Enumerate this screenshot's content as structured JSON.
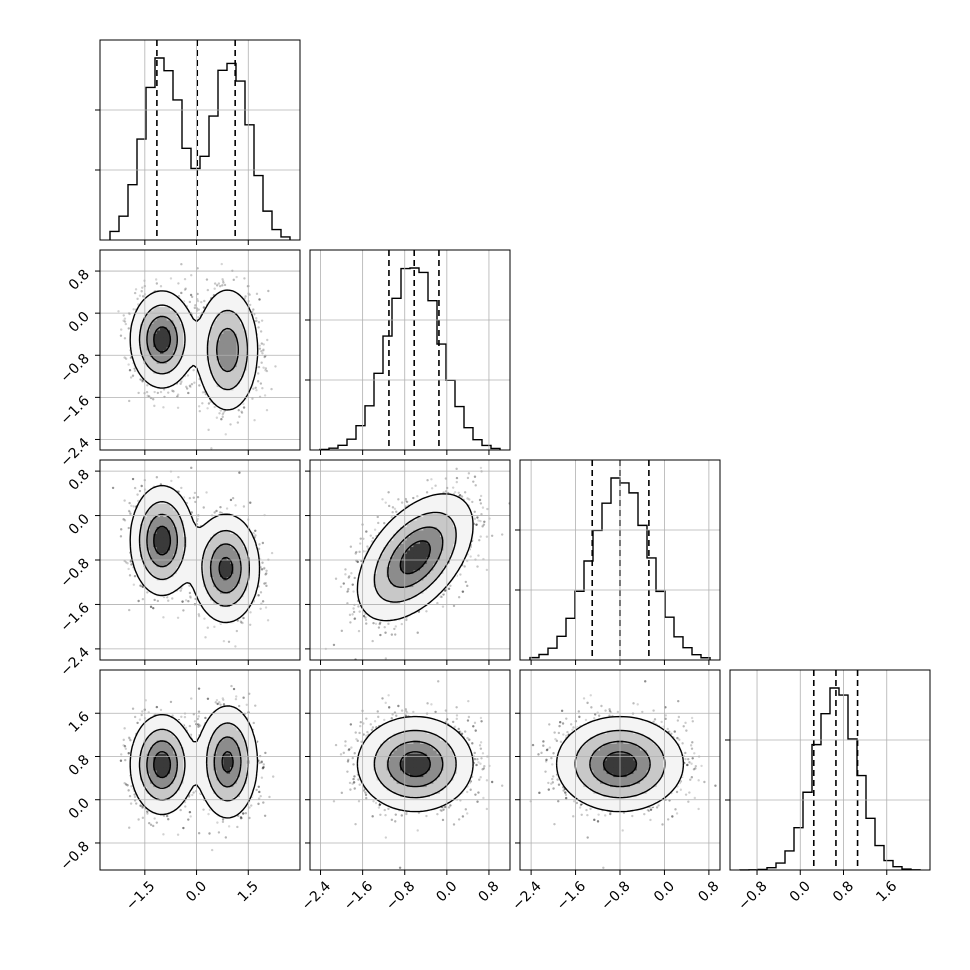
{
  "chart_data": {
    "type": "corner",
    "colors": {
      "line": "#000000",
      "grid": "#b0b0b0",
      "scatter": "#000000"
    },
    "params": [
      {
        "range": [
          -2.8,
          3.0
        ],
        "ticks": [
          -1.5,
          0.0,
          1.5
        ],
        "tick_labels": [
          "−1.5",
          "0.0",
          "1.5"
        ],
        "mixture": [
          {
            "w": 0.5,
            "mu": -1.0,
            "sd": 0.55
          },
          {
            "w": 0.5,
            "mu": 1.0,
            "sd": 0.55
          }
        ],
        "quantiles": [
          -1.15,
          0.02,
          1.12
        ]
      },
      {
        "range": [
          -2.6,
          1.2
        ],
        "ticks": [
          -2.4,
          -1.6,
          -0.8,
          0.0,
          0.8
        ],
        "tick_labels": [
          "−2.4",
          "−1.6",
          "−0.8",
          "0.0",
          "0.8"
        ],
        "mixture": [
          {
            "w": 1.0,
            "mu": -0.62,
            "sd": 0.5
          }
        ],
        "quantiles": [
          -1.1,
          -0.62,
          -0.15
        ]
      },
      {
        "range": [
          -2.6,
          1.0
        ],
        "ticks": [
          -2.4,
          -1.6,
          -0.8,
          0.0,
          0.8
        ],
        "tick_labels": [
          "−2.4",
          "−1.6",
          "−0.8",
          "0.0",
          "0.8"
        ],
        "mixture": [
          {
            "w": 1.0,
            "mu": -0.8,
            "sd": 0.52
          }
        ],
        "quantiles": [
          -1.3,
          -0.8,
          -0.28
        ]
      },
      {
        "range": [
          -1.3,
          2.4
        ],
        "ticks": [
          -0.8,
          0.0,
          0.8,
          1.6
        ],
        "tick_labels": [
          "−0.8",
          "0.0",
          "0.8",
          "1.6"
        ],
        "mixture": [
          {
            "w": 1.0,
            "mu": 0.66,
            "sd": 0.4
          }
        ],
        "quantiles": [
          0.25,
          0.66,
          1.06
        ]
      }
    ],
    "pairs": [
      {
        "row": 1,
        "col": 0,
        "blobs": [
          {
            "w": 0.5,
            "mx": -1.0,
            "my": -0.5,
            "sx": 0.42,
            "sy": 0.42,
            "rho": 0.0
          },
          {
            "w": 0.5,
            "mx": 0.9,
            "my": -0.7,
            "sx": 0.42,
            "sy": 0.55,
            "rho": 0.0
          }
        ]
      },
      {
        "row": 2,
        "col": 0,
        "blobs": [
          {
            "w": 0.5,
            "mx": -1.0,
            "my": -0.45,
            "sx": 0.42,
            "sy": 0.45,
            "rho": 0.0
          },
          {
            "w": 0.5,
            "mx": 0.85,
            "my": -0.95,
            "sx": 0.45,
            "sy": 0.45,
            "rho": 0.0
          }
        ]
      },
      {
        "row": 2,
        "col": 1,
        "blobs": [
          {
            "w": 1.0,
            "mx": -0.6,
            "my": -0.75,
            "sx": 0.5,
            "sy": 0.52,
            "rho": 0.5
          }
        ]
      },
      {
        "row": 3,
        "col": 0,
        "blobs": [
          {
            "w": 0.5,
            "mx": -1.0,
            "my": 0.65,
            "sx": 0.42,
            "sy": 0.42,
            "rho": 0.0
          },
          {
            "w": 0.5,
            "mx": 0.9,
            "my": 0.7,
            "sx": 0.4,
            "sy": 0.48,
            "rho": 0.0
          }
        ]
      },
      {
        "row": 3,
        "col": 1,
        "blobs": [
          {
            "w": 1.0,
            "mx": -0.6,
            "my": 0.66,
            "sx": 0.5,
            "sy": 0.4,
            "rho": 0.0
          }
        ]
      },
      {
        "row": 3,
        "col": 2,
        "blobs": [
          {
            "w": 1.0,
            "mx": -0.8,
            "my": 0.66,
            "sx": 0.52,
            "sy": 0.4,
            "rho": 0.0
          }
        ]
      }
    ]
  }
}
